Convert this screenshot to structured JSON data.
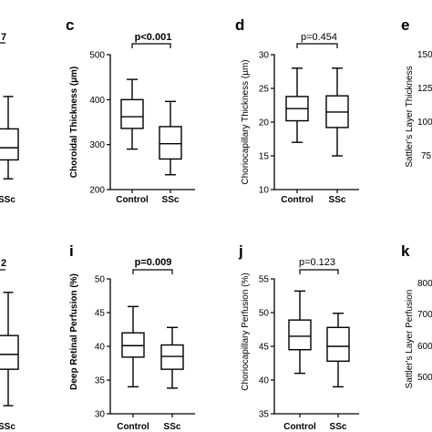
{
  "chart_data": [
    {
      "panel": "partial-top-left",
      "type": "box",
      "title": "",
      "ylabel": "",
      "pvalue_fragment": "7",
      "pvalue_bold": true,
      "categories": [
        "",
        "SSc"
      ],
      "ylim": [
        0,
        10
      ],
      "yticks": [],
      "boxes": [
        {
          "category": "SSc",
          "min": 0.8,
          "q1": 2.2,
          "median": 3.1,
          "q3": 4.5,
          "max": 6.9
        }
      ]
    },
    {
      "panel": "c",
      "type": "box",
      "ylabel": "Choroidal Thickness (µm)",
      "ylabel_bold": true,
      "pvalue": "p<0.001",
      "pvalue_bold": true,
      "categories": [
        "Control",
        "SSc"
      ],
      "ylim": [
        200,
        500
      ],
      "yticks": [
        "200",
        "300",
        "400",
        "500"
      ],
      "boxes": [
        {
          "category": "Control",
          "min": 290,
          "q1": 336,
          "median": 362,
          "q3": 400,
          "max": 445
        },
        {
          "category": "SSc",
          "min": 233,
          "q1": 268,
          "median": 302,
          "q3": 340,
          "max": 396
        }
      ]
    },
    {
      "panel": "d",
      "type": "box",
      "ylabel": "Choriocapillary Thickness (µm)",
      "ylabel_bold": false,
      "pvalue": "p=0.454",
      "pvalue_bold": false,
      "categories": [
        "Control",
        "SSc"
      ],
      "ylim": [
        10,
        30
      ],
      "yticks": [
        "10",
        "15",
        "20",
        "25",
        "30"
      ],
      "boxes": [
        {
          "category": "Control",
          "min": 17,
          "q1": 20.2,
          "median": 22,
          "q3": 23.8,
          "max": 28
        },
        {
          "category": "SSc",
          "min": 15,
          "q1": 19.2,
          "median": 21.5,
          "q3": 23.9,
          "max": 28
        }
      ]
    },
    {
      "panel": "e",
      "type": "box",
      "ylabel": "Sattler's Layer Thickness",
      "ylabel_bold": false,
      "categories": [],
      "yticks": [
        "150",
        "125",
        "100",
        "75"
      ],
      "boxes": []
    },
    {
      "panel": "partial-bottom-left",
      "type": "box",
      "ylabel": "",
      "pvalue_fragment": "2",
      "pvalue_bold": true,
      "categories": [
        "",
        "SSc"
      ],
      "ylim": [
        0,
        10
      ],
      "yticks": [],
      "boxes": [
        {
          "category": "SSc",
          "min": 0.6,
          "q1": 3.3,
          "median": 4.4,
          "q3": 5.8,
          "max": 9.0
        }
      ]
    },
    {
      "panel": "i",
      "type": "box",
      "ylabel": "Deep Retinal Perfusion (%)",
      "ylabel_bold": true,
      "pvalue": "p=0.009",
      "pvalue_bold": true,
      "categories": [
        "Control",
        "SSc"
      ],
      "ylim": [
        30,
        50
      ],
      "yticks": [
        "30",
        "35",
        "40",
        "45",
        "50"
      ],
      "boxes": [
        {
          "category": "Control",
          "min": 34,
          "q1": 38.4,
          "median": 40.1,
          "q3": 42,
          "max": 45.9
        },
        {
          "category": "SSc",
          "min": 33.8,
          "q1": 36.6,
          "median": 38.5,
          "q3": 40.2,
          "max": 42.8
        }
      ]
    },
    {
      "panel": "j",
      "type": "box",
      "ylabel": "Choriocapillary Perfusion (%)",
      "ylabel_bold": false,
      "pvalue": "p=0.123",
      "pvalue_bold": false,
      "categories": [
        "Control",
        "SSc"
      ],
      "ylim": [
        35,
        55
      ],
      "yticks": [
        "35",
        "40",
        "45",
        "50",
        "55"
      ],
      "boxes": [
        {
          "category": "Control",
          "min": 41,
          "q1": 44.5,
          "median": 46.5,
          "q3": 48.9,
          "max": 53.2
        },
        {
          "category": "SSc",
          "min": 39,
          "q1": 42.8,
          "median": 45,
          "q3": 47.8,
          "max": 49.9
        }
      ]
    },
    {
      "panel": "k",
      "type": "box",
      "ylabel": "Sattler's Layer Perfusion",
      "ylabel_bold": false,
      "categories": [],
      "yticks": [
        "800",
        "700",
        "600",
        "500"
      ],
      "boxes": []
    }
  ]
}
